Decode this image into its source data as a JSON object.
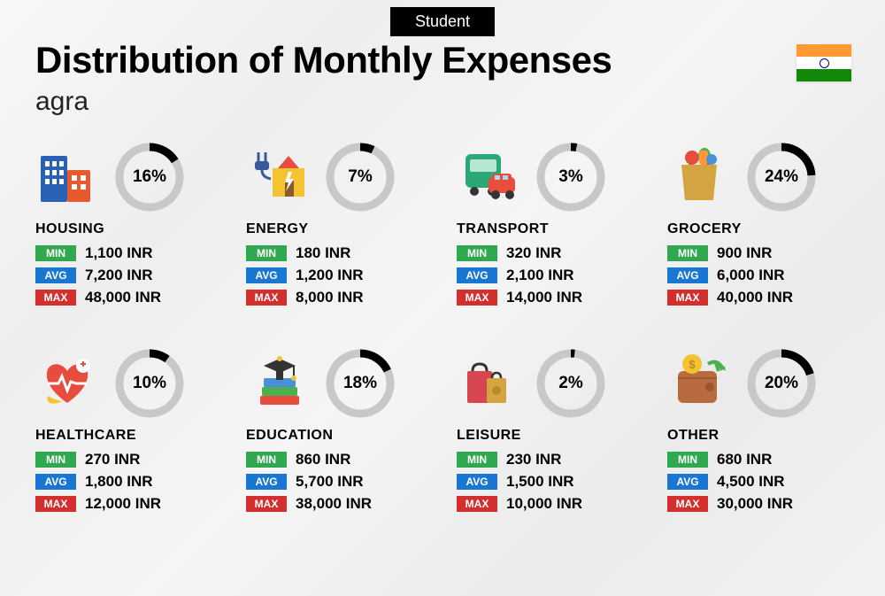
{
  "badge": "Student",
  "title": "Distribution of Monthly Expenses",
  "subtitle": "agra",
  "flag": {
    "saffron": "#ff9933",
    "white": "#ffffff",
    "green": "#138808",
    "chakra": "#000080"
  },
  "currency": "INR",
  "labels": {
    "min": "MIN",
    "avg": "AVG",
    "max": "MAX"
  },
  "colors": {
    "min": "#2fa84f",
    "avg": "#1976d2",
    "max": "#d32f2f",
    "donut_bg": "#c8c8c8",
    "donut_fg": "#000000",
    "badge_bg": "#000000",
    "badge_fg": "#ffffff"
  },
  "donut": {
    "radius": 34,
    "stroke": 9
  },
  "categories": [
    {
      "key": "housing",
      "name": "HOUSING",
      "percent": 16,
      "min": "1,100",
      "avg": "7,200",
      "max": "48,000"
    },
    {
      "key": "energy",
      "name": "ENERGY",
      "percent": 7,
      "min": "180",
      "avg": "1,200",
      "max": "8,000"
    },
    {
      "key": "transport",
      "name": "TRANSPORT",
      "percent": 3,
      "min": "320",
      "avg": "2,100",
      "max": "14,000"
    },
    {
      "key": "grocery",
      "name": "GROCERY",
      "percent": 24,
      "min": "900",
      "avg": "6,000",
      "max": "40,000"
    },
    {
      "key": "healthcare",
      "name": "HEALTHCARE",
      "percent": 10,
      "min": "270",
      "avg": "1,800",
      "max": "12,000"
    },
    {
      "key": "education",
      "name": "EDUCATION",
      "percent": 18,
      "min": "860",
      "avg": "5,700",
      "max": "38,000"
    },
    {
      "key": "leisure",
      "name": "LEISURE",
      "percent": 2,
      "min": "230",
      "avg": "1,500",
      "max": "10,000"
    },
    {
      "key": "other",
      "name": "OTHER",
      "percent": 20,
      "min": "680",
      "avg": "4,500",
      "max": "30,000"
    }
  ]
}
